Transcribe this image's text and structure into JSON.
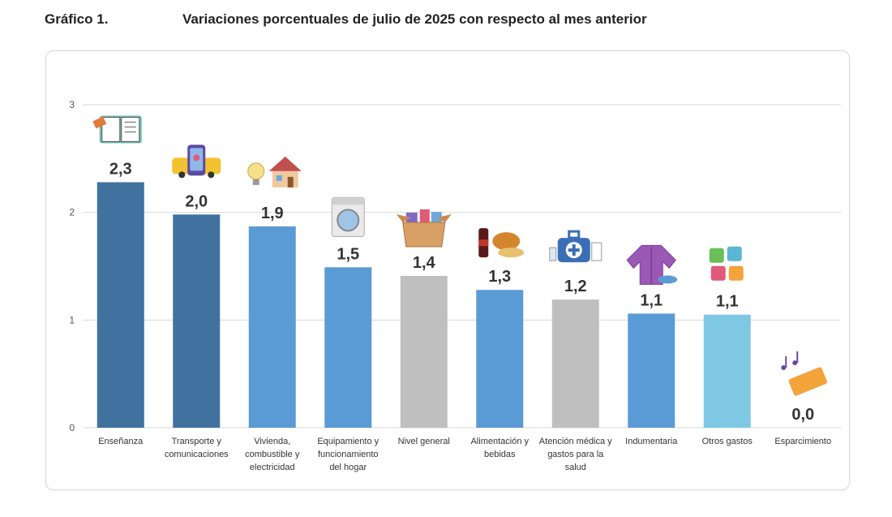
{
  "header": {
    "label": "Gráfico 1.",
    "title": "Variaciones porcentuales de julio de 2025 con respecto al mes anterior"
  },
  "chart_data": {
    "type": "bar",
    "title": "Variaciones porcentuales de julio de 2025 con respecto al mes anterior",
    "categories": [
      [
        "Enseñanza"
      ],
      [
        "Transporte y",
        "comunicaciones"
      ],
      [
        "Vivienda,",
        "combustible y",
        "electricidad"
      ],
      [
        "Equipamiento y",
        "funcionamiento",
        "del hogar"
      ],
      [
        "Nivel general"
      ],
      [
        "Alimentación y",
        "bebidas"
      ],
      [
        "Atención médica y",
        "gastos para la",
        "salud"
      ],
      [
        "Indumentaria"
      ],
      [
        "Otros gastos"
      ],
      [
        "Esparcimiento"
      ]
    ],
    "values": [
      2.3,
      2.0,
      1.9,
      1.5,
      1.4,
      1.3,
      1.2,
      1.1,
      1.1,
      0.0
    ],
    "value_labels": [
      "2,3",
      "2,0",
      "1,9",
      "1,5",
      "1,4",
      "1,3",
      "1,2",
      "1,1",
      "1,1",
      "0,0"
    ],
    "bar_heights": [
      2.28,
      1.98,
      1.87,
      1.49,
      1.41,
      1.28,
      1.19,
      1.06,
      1.05,
      0.0
    ],
    "colors": [
      "#41729f",
      "#41729f",
      "#5b9bd5",
      "#5b9bd5",
      "#bfbfbf",
      "#5b9bd5",
      "#bfbfbf",
      "#5b9bd5",
      "#7ec8e3",
      "#5b9bd5"
    ],
    "icons": [
      "book-icon",
      "bus-phone-icon",
      "house-bulb-icon",
      "washing-machine-icon",
      "box-icon",
      "food-drink-icon",
      "medical-kit-icon",
      "jacket-icon",
      "puzzle-icon",
      "ticket-music-icon"
    ],
    "y_ticks": [
      "0",
      "1",
      "2",
      "3"
    ],
    "ylim": [
      0,
      3
    ],
    "xlabel": "",
    "ylabel": "",
    "grid": true,
    "legend": "none"
  }
}
